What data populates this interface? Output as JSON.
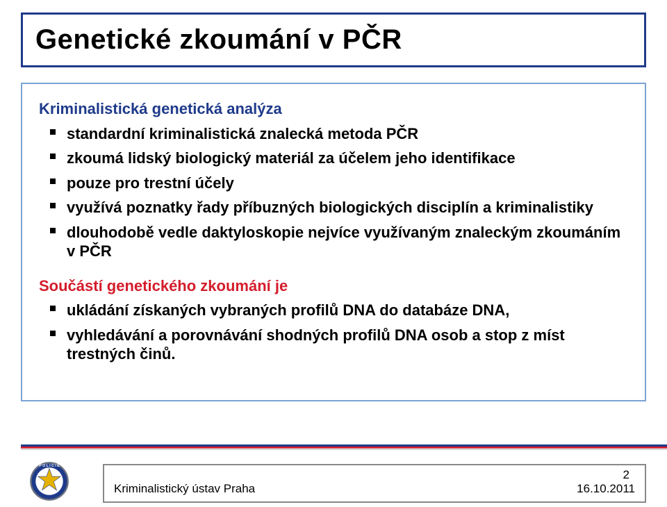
{
  "slide": {
    "title": "Genetické zkoumání v PČR",
    "title_box_border": "#1e3a8a",
    "content_box_border": "#7aa3d4",
    "section1_head": "Kriminalistická genetická analýza",
    "section1_head_color": "#1e3a8a",
    "bullets1": [
      "standardní kriminalistická znalecká metoda PČR",
      "zkoumá lidský biologický materiál za účelem jeho identifikace",
      "pouze pro trestní účely",
      "využívá poznatky řady příbuzných biologických disciplín a kriminalistiky",
      "dlouhodobě vedle daktyloskopie nejvíce využívaným znaleckým zkoumáním v PČR"
    ],
    "section2_head": "Součástí genetického zkoumání je",
    "section2_head_color": "#d41c2b",
    "bullets2": [
      "ukládání získaných vybraných profilů DNA do databáze DNA,",
      "vyhledávání a porovnávání shodných profilů DNA osob a stop z míst trestných činů."
    ]
  },
  "footer": {
    "org": "Kriminalistický ústav Praha",
    "date": "16.10.2011",
    "page": "2"
  },
  "badge": {
    "ring_color": "#6b7280",
    "star_color": "#e5b200",
    "center_color": "#1e3a8a"
  }
}
